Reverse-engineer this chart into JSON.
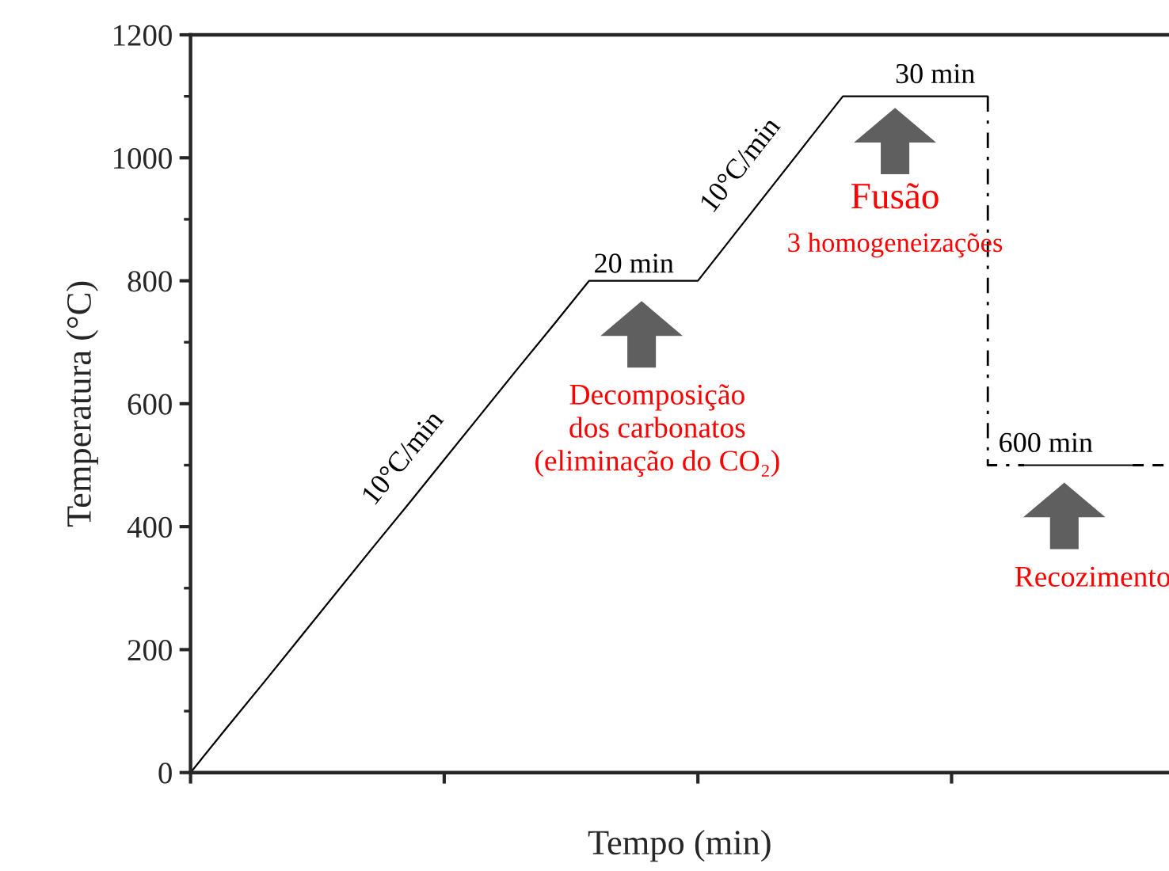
{
  "chart_data": {
    "type": "line",
    "xlabel": "Tempo (min)",
    "ylabel": "Temperatura (°C)",
    "categories": [
      null,
      null,
      null,
      null,
      null,
      null,
      null,
      null,
      null,
      null,
      null,
      null,
      null,
      null,
      null,
      null,
      null,
      null,
      null,
      null,
      null,
      null,
      null,
      null,
      null,
      null,
      null,
      null
    ],
    "ylim": [
      0,
      1200
    ],
    "yticks": [
      0,
      200,
      400,
      600,
      800,
      1000,
      1200
    ],
    "grid": false,
    "legend": false,
    "series": [
      {
        "color": "#000000",
        "line_style": "solid",
        "values": [
          0,
          73,
          145,
          218,
          291,
          364,
          436,
          509,
          582,
          655,
          727,
          800,
          800,
          800,
          800,
          875,
          950,
          1025,
          1100,
          1100,
          1100,
          1100,
          1100,
          null,
          null,
          null,
          null,
          null
        ]
      },
      {
        "type": "step",
        "color": "#000000",
        "line_style": "dashdot",
        "values": [
          null,
          null,
          null,
          null,
          null,
          null,
          null,
          null,
          null,
          null,
          null,
          null,
          null,
          null,
          null,
          null,
          null,
          null,
          null,
          null,
          null,
          null,
          1100,
          500,
          null,
          null,
          null,
          null
        ]
      },
      {
        "color": "#000000",
        "line_style": "solid",
        "values": [
          null,
          null,
          null,
          null,
          null,
          null,
          null,
          null,
          null,
          null,
          null,
          null,
          null,
          null,
          null,
          null,
          null,
          null,
          null,
          null,
          null,
          null,
          null,
          500,
          500,
          500,
          500,
          null
        ]
      },
      {
        "color": "#000000",
        "line_style": "dashed",
        "values": [
          null,
          null,
          null,
          null,
          null,
          null,
          null,
          null,
          null,
          null,
          null,
          null,
          null,
          null,
          null,
          null,
          null,
          null,
          null,
          null,
          null,
          null,
          null,
          null,
          null,
          null,
          500,
          500
        ]
      }
    ],
    "annotations": [
      "10°C/min",
      "20 min",
      "10°C/min",
      "30 min",
      "600 min",
      "Decomposição\ndos carbonatos\n(eliminação do CO₂)",
      "Fusão",
      "3 homogeneizações",
      "Recozimento"
    ]
  }
}
